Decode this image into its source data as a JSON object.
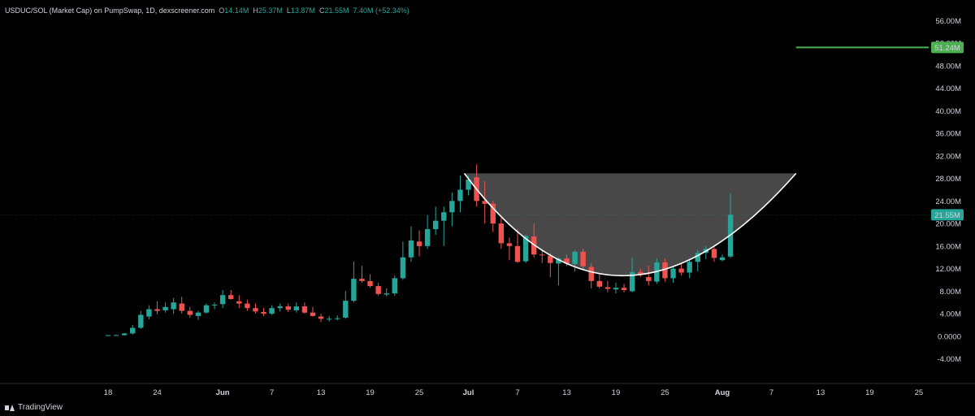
{
  "legend": {
    "title": "USDUC/SOL (Market Cap) on PumpSwap, 1D, dexscreener.com",
    "o_label": "O",
    "o_value": "14.14M",
    "h_label": "H",
    "h_value": "25.37M",
    "l_label": "L",
    "l_value": "13.87M",
    "c_label": "C",
    "c_value": "21.55M",
    "change": "7.40M (+52.34%)"
  },
  "branding": {
    "name": "TradingView"
  },
  "colors": {
    "up": "#26a69a",
    "down": "#ef5350",
    "hline": "#4caf50",
    "background": "#000000",
    "fill": "#555555"
  },
  "chart_data": {
    "type": "candlestick",
    "y_tick_labels": [
      "56.00M",
      "52.00M",
      "48.00M",
      "44.00M",
      "40.00M",
      "36.00M",
      "32.00M",
      "28.00M",
      "24.00M",
      "20.00M",
      "16.00M",
      "12.00M",
      "8.00M",
      "4.00M",
      "0.0000",
      "-4.00M"
    ],
    "ylim": [
      -5.5,
      57.5
    ],
    "x_tick_labels": [
      {
        "day": 0,
        "label": "18"
      },
      {
        "day": 6,
        "label": "24"
      },
      {
        "day": 14,
        "label": "Jun"
      },
      {
        "day": 20,
        "label": "7"
      },
      {
        "day": 26,
        "label": "13"
      },
      {
        "day": 32,
        "label": "19"
      },
      {
        "day": 38,
        "label": "25"
      },
      {
        "day": 44,
        "label": "Jul"
      },
      {
        "day": 50,
        "label": "7"
      },
      {
        "day": 56,
        "label": "13"
      },
      {
        "day": 62,
        "label": "19"
      },
      {
        "day": 68,
        "label": "25"
      },
      {
        "day": 75,
        "label": "Aug"
      },
      {
        "day": 81,
        "label": "7"
      },
      {
        "day": 87,
        "label": "13"
      },
      {
        "day": 93,
        "label": "19"
      },
      {
        "day": 99,
        "label": "25"
      }
    ],
    "price_labels": [
      {
        "value": 51.24,
        "text": "51.24M",
        "color": "#4caf50"
      },
      {
        "value": 21.55,
        "text": "21.55M",
        "color": "#26a69a"
      }
    ],
    "horizontal_line": {
      "value": 51.24,
      "from_day": 84
    },
    "candles": [
      [
        0,
        0.1,
        0.2,
        0.0,
        0.2
      ],
      [
        1,
        0.2,
        0.3,
        0.1,
        0.2
      ],
      [
        2,
        0.2,
        0.6,
        0.1,
        0.5
      ],
      [
        3,
        0.5,
        2.0,
        0.3,
        1.5
      ],
      [
        4,
        1.5,
        4.5,
        1.3,
        3.8
      ],
      [
        5,
        3.5,
        5.5,
        3.0,
        4.8
      ],
      [
        6,
        4.8,
        6.2,
        3.9,
        4.5
      ],
      [
        7,
        4.6,
        6.0,
        4.2,
        5.2
      ],
      [
        8,
        4.8,
        6.8,
        4.0,
        6.0
      ],
      [
        9,
        5.8,
        7.0,
        4.0,
        4.5
      ],
      [
        10,
        4.5,
        5.2,
        3.3,
        3.8
      ],
      [
        11,
        3.6,
        4.5,
        2.9,
        4.2
      ],
      [
        12,
        4.2,
        5.8,
        4.0,
        5.5
      ],
      [
        13,
        5.5,
        6.0,
        4.8,
        5.6
      ],
      [
        14,
        5.7,
        8.2,
        5.0,
        7.3
      ],
      [
        15,
        7.3,
        8.2,
        6.5,
        6.6
      ],
      [
        16,
        6.2,
        7.3,
        5.0,
        5.8
      ],
      [
        17,
        5.8,
        6.5,
        4.5,
        5.0
      ],
      [
        18,
        5.0,
        5.8,
        4.0,
        4.4
      ],
      [
        19,
        4.3,
        5.0,
        3.6,
        4.0
      ],
      [
        20,
        4.0,
        5.5,
        3.8,
        5.0
      ],
      [
        21,
        5.0,
        5.8,
        4.4,
        5.3
      ],
      [
        22,
        5.3,
        5.8,
        4.3,
        4.7
      ],
      [
        23,
        4.6,
        6.0,
        4.2,
        5.3
      ],
      [
        24,
        5.3,
        6.0,
        4.0,
        4.2
      ],
      [
        25,
        4.2,
        5.2,
        3.5,
        3.6
      ],
      [
        26,
        3.5,
        4.0,
        2.5,
        3.1
      ],
      [
        27,
        3.0,
        3.6,
        2.6,
        3.1
      ],
      [
        28,
        3.1,
        3.7,
        2.8,
        3.2
      ],
      [
        29,
        3.3,
        8.0,
        3.1,
        6.3
      ],
      [
        30,
        6.3,
        13.3,
        6.0,
        10.2
      ],
      [
        31,
        10.2,
        12.5,
        9.5,
        9.8
      ],
      [
        32,
        9.8,
        11.0,
        8.6,
        8.9
      ],
      [
        33,
        8.9,
        9.5,
        7.2,
        7.5
      ],
      [
        34,
        7.4,
        8.5,
        7.1,
        7.6
      ],
      [
        35,
        7.6,
        10.8,
        7.2,
        10.3
      ],
      [
        36,
        10.3,
        16.8,
        10.0,
        14.0
      ],
      [
        37,
        14.0,
        19.5,
        13.2,
        17.0
      ],
      [
        38,
        16.8,
        18.8,
        14.2,
        16.0
      ],
      [
        39,
        16.0,
        21.5,
        15.5,
        19.0
      ],
      [
        40,
        19.0,
        23.0,
        18.0,
        20.5
      ],
      [
        41,
        20.5,
        23.0,
        16.0,
        22.0
      ],
      [
        42,
        22.0,
        25.5,
        19.5,
        24.0
      ],
      [
        43,
        24.0,
        28.5,
        22.0,
        26.0
      ],
      [
        44,
        26.0,
        28.5,
        25.0,
        27.8
      ],
      [
        45,
        28.2,
        30.5,
        23.0,
        24.0
      ],
      [
        46,
        24.0,
        27.5,
        20.0,
        23.5
      ],
      [
        47,
        23.5,
        24.0,
        18.5,
        20.0
      ],
      [
        48,
        20.0,
        21.0,
        15.5,
        16.5
      ],
      [
        49,
        16.5,
        17.5,
        13.5,
        16.0
      ],
      [
        50,
        16.0,
        19.0,
        13.0,
        13.2
      ],
      [
        51,
        13.3,
        18.0,
        13.0,
        17.8
      ],
      [
        52,
        17.7,
        20.0,
        14.0,
        14.5
      ],
      [
        53,
        14.5,
        15.5,
        13.0,
        14.4
      ],
      [
        54,
        14.3,
        14.8,
        10.5,
        13.0
      ],
      [
        55,
        12.9,
        14.0,
        9.0,
        13.8
      ],
      [
        56,
        13.8,
        14.5,
        12.5,
        12.9
      ],
      [
        57,
        12.8,
        15.3,
        11.5,
        15.0
      ],
      [
        58,
        15.0,
        15.5,
        11.8,
        12.4
      ],
      [
        59,
        12.3,
        13.0,
        8.5,
        9.8
      ],
      [
        60,
        9.8,
        11.0,
        8.5,
        8.8
      ],
      [
        61,
        8.7,
        9.8,
        7.8,
        8.4
      ],
      [
        62,
        8.3,
        9.5,
        7.6,
        8.6
      ],
      [
        63,
        8.6,
        9.3,
        7.8,
        8.2
      ],
      [
        64,
        8.0,
        14.0,
        7.8,
        11.4
      ],
      [
        65,
        11.4,
        12.0,
        10.5,
        11.0
      ],
      [
        66,
        10.5,
        12.5,
        9.0,
        9.8
      ],
      [
        67,
        9.7,
        13.8,
        9.3,
        13.1
      ],
      [
        68,
        13.1,
        13.8,
        9.7,
        10.3
      ],
      [
        69,
        10.3,
        12.5,
        9.5,
        12.0
      ],
      [
        70,
        12.0,
        12.8,
        10.8,
        11.3
      ],
      [
        71,
        11.3,
        13.5,
        10.3,
        13.2
      ],
      [
        72,
        13.2,
        15.3,
        11.5,
        14.8
      ],
      [
        73,
        14.8,
        16.0,
        13.7,
        15.5
      ],
      [
        74,
        15.5,
        16.0,
        13.2,
        13.9
      ],
      [
        75,
        13.5,
        14.5,
        13.3,
        14.0
      ],
      [
        76,
        14.14,
        25.37,
        13.87,
        21.55
      ]
    ],
    "cup_curve": {
      "start": [
        43.5,
        28.9
      ],
      "control": [
        62,
        -7.4
      ],
      "end": [
        84,
        28.9
      ],
      "top": 28.9
    }
  }
}
